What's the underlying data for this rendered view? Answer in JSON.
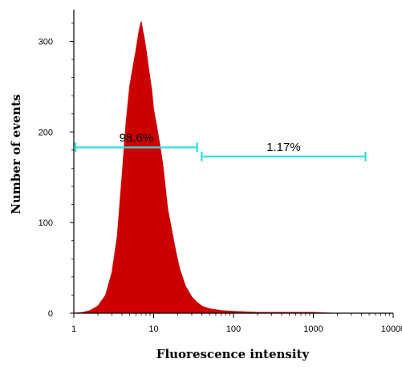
{
  "chart_data": {
    "type": "area",
    "xlabel": "Fluorescence intensity",
    "ylabel": "Number of events",
    "x_scale": "log",
    "xlim": [
      1,
      10000
    ],
    "ylim": [
      0,
      335
    ],
    "x_ticks": [
      {
        "value": 1,
        "label": "1"
      },
      {
        "value": 10,
        "label": "10"
      },
      {
        "value": 100,
        "label": "100"
      },
      {
        "value": 1000,
        "label": "1000"
      },
      {
        "value": 10000,
        "label": "10000"
      }
    ],
    "y_ticks": [
      {
        "value": 0,
        "label": "0"
      },
      {
        "value": 100,
        "label": "100"
      },
      {
        "value": 200,
        "label": "200"
      },
      {
        "value": 300,
        "label": "300"
      }
    ],
    "grid": false,
    "series": [
      {
        "color": "#cc0000",
        "x": [
          1.0,
          1.3,
          1.6,
          2.0,
          2.5,
          3.0,
          3.5,
          4.0,
          4.5,
          5.0,
          5.5,
          6.0,
          6.5,
          6.8,
          7.0,
          7.3,
          7.6,
          8.0,
          8.5,
          9.0,
          9.5,
          10.0,
          11,
          12,
          13,
          14,
          15,
          17,
          19,
          21,
          25,
          30,
          35,
          40,
          50,
          70,
          100,
          200,
          500,
          1000,
          1800
        ],
        "y": [
          0,
          1,
          3,
          8,
          20,
          45,
          85,
          150,
          210,
          250,
          272,
          290,
          310,
          318,
          322,
          312,
          305,
          292,
          275,
          260,
          245,
          225,
          205,
          185,
          165,
          140,
          115,
          90,
          68,
          50,
          30,
          18,
          12,
          8,
          5,
          3,
          2,
          1,
          1,
          1,
          0
        ]
      }
    ],
    "gates": [
      {
        "label": "98.6%",
        "x_start": 1.05,
        "x_end": 35,
        "y": 183,
        "color": "#33dddd"
      },
      {
        "label": "1.17%",
        "x_start": 40,
        "x_end": 4500,
        "y": 173,
        "color": "#33dddd"
      }
    ]
  }
}
